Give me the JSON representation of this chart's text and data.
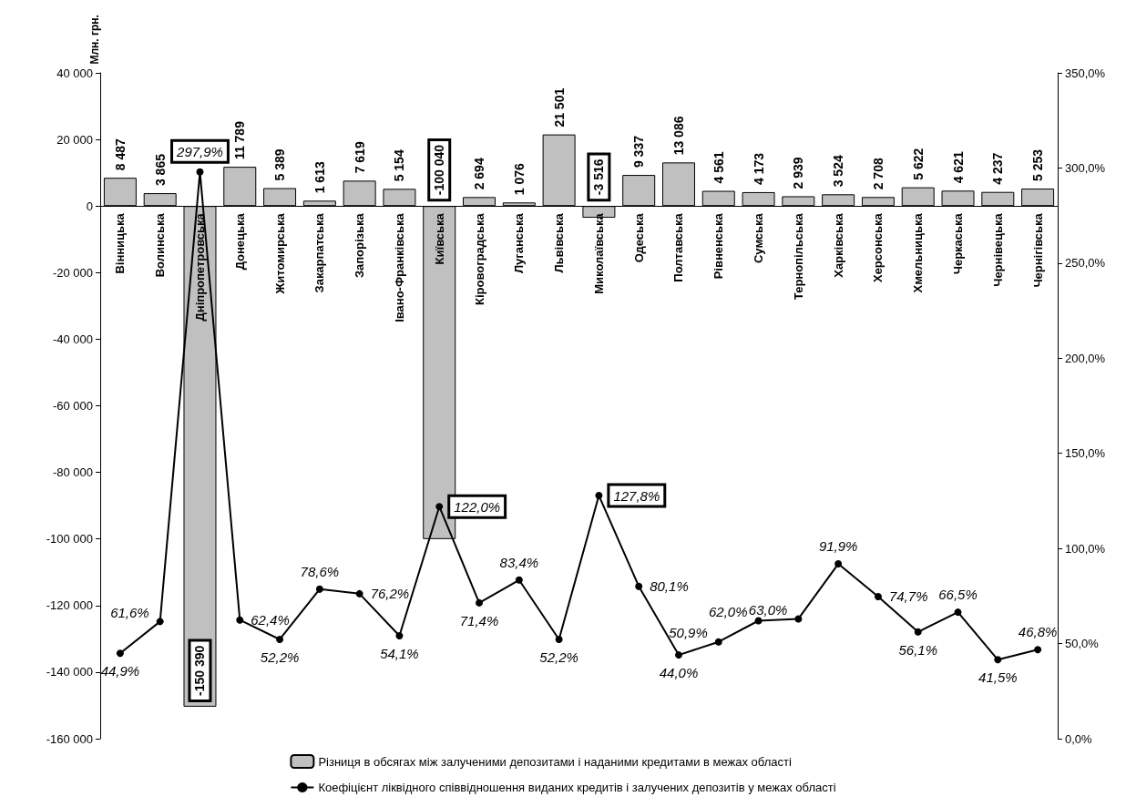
{
  "chart_data": {
    "type": "bar",
    "ylabel": "Млн. грн.",
    "categories": [
      "Вінницька",
      "Волинська",
      "Дніпропетровська",
      "Донецька",
      "Житомирська",
      "Закарпатська",
      "Запорізька",
      "Івано-Франківська",
      "Київська",
      "Кіровоградська",
      "Луганська",
      "Львівська",
      "Миколаївська",
      "Одеська",
      "Полтавська",
      "Рівненська",
      "Сумська",
      "Тернопільська",
      "Харківська",
      "Херсонська",
      "Хмельницька",
      "Черкаська",
      "Чернівецька",
      "Чернігівська"
    ],
    "series": [
      {
        "name": "Різниця в обсягах між залученими депозитами і наданими кредитами в межах області",
        "color": "#c0c0c0",
        "values": [
          8487,
          3865,
          -150390,
          11789,
          5389,
          1613,
          7619,
          5154,
          -100040,
          2694,
          1076,
          21501,
          -3516,
          9337,
          13086,
          4561,
          4173,
          2939,
          3524,
          2708,
          5622,
          4621,
          4237,
          5253
        ],
        "value_labels": [
          "8 487",
          "3 865",
          "-150 390",
          "11 789",
          "5 389",
          "1 613",
          "7 619",
          "5 154",
          "-100 040",
          "2 694",
          "1 076",
          "21 501",
          "-3 516",
          "9 337",
          "13 086",
          "4 561",
          "4 173",
          "2 939",
          "3 524",
          "2 708",
          "5 622",
          "4 621",
          "4 237",
          "5 253"
        ]
      },
      {
        "type": "line",
        "axis": "y2",
        "name": "Коефіцієнт ліквідного співвідношення виданих кредитів і залучених депозитів у межах області",
        "color": "#000000",
        "values": [
          44.9,
          61.6,
          297.9,
          62.4,
          52.2,
          78.6,
          76.2,
          54.1,
          122.0,
          71.4,
          83.4,
          52.2,
          127.8,
          80.1,
          44.0,
          50.9,
          62.0,
          63.0,
          91.9,
          74.7,
          56.1,
          66.5,
          41.5,
          46.8
        ],
        "value_labels": [
          "44,9%",
          "61,6%",
          "297,9%",
          "62,4%",
          "52,2%",
          "78,6%",
          "76,2%",
          "54,1%",
          "122,0%",
          "71,4%",
          "83,4%",
          "52,2%",
          "127,8%",
          "80,1%",
          "44,0%",
          "50,9%",
          "62,0%",
          "63,0%",
          "91,9%",
          "74,7%",
          "56,1%",
          "66,5%",
          "41,5%",
          "46,8%"
        ]
      }
    ],
    "ylim": [
      -160000,
      40000
    ],
    "yticks": [
      {
        "value": -160000,
        "label": "-160 000"
      },
      {
        "value": -140000,
        "label": "-140 000"
      },
      {
        "value": -120000,
        "label": "-120 000"
      },
      {
        "value": -100000,
        "label": "-100 000"
      },
      {
        "value": -80000,
        "label": "-80 000"
      },
      {
        "value": -60000,
        "label": "-60 000"
      },
      {
        "value": -40000,
        "label": "-40 000"
      },
      {
        "value": -20000,
        "label": "-20 000"
      },
      {
        "value": 0,
        "label": "0"
      },
      {
        "value": 20000,
        "label": "20 000"
      },
      {
        "value": 40000,
        "label": "40 000"
      }
    ],
    "y2lim": [
      0,
      350
    ],
    "y2ticks": [
      {
        "value": 0,
        "label": "0,0%"
      },
      {
        "value": 50,
        "label": "50,0%"
      },
      {
        "value": 100,
        "label": "100,0%"
      },
      {
        "value": 150,
        "label": "150,0%"
      },
      {
        "value": 200,
        "label": "200,0%"
      },
      {
        "value": 250,
        "label": "250,0%"
      },
      {
        "value": 300,
        "label": "300,0%"
      },
      {
        "value": 350,
        "label": "350,0%"
      }
    ],
    "grid": false,
    "legend": "bottom",
    "marker": "circle",
    "line_style": "solid"
  }
}
